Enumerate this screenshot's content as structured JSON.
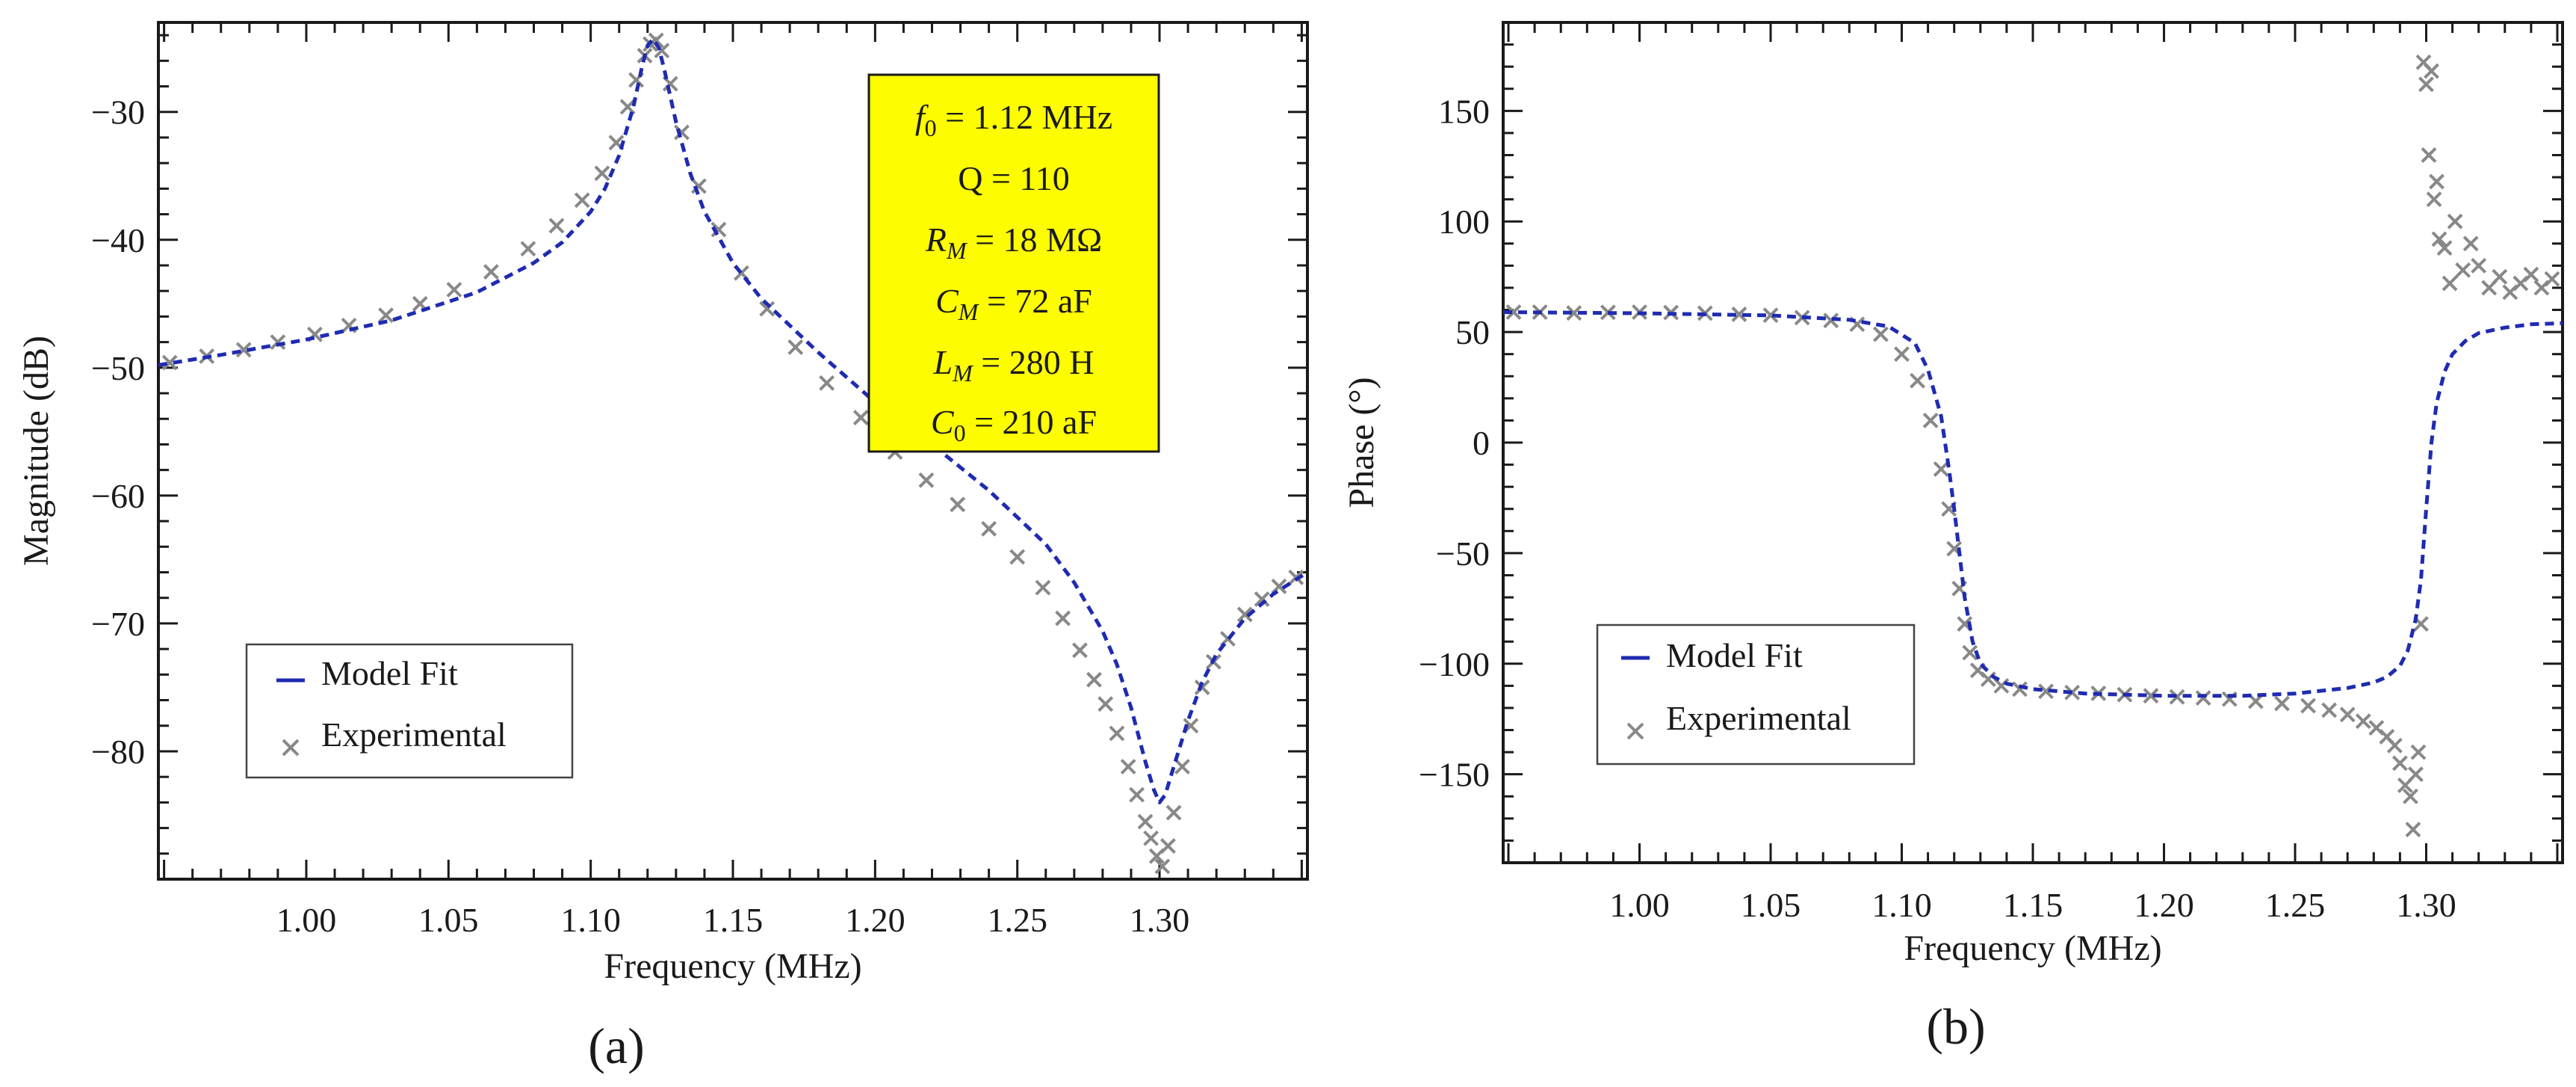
{
  "figure": {
    "panels": [
      "(a)",
      "(b)"
    ]
  },
  "chart_data": [
    {
      "type": "line",
      "panel_label": "(a)",
      "xlabel": "Frequency (MHz)",
      "ylabel": "Magnitude (dB)",
      "xlim": [
        0.948,
        1.352
      ],
      "ylim": [
        -90,
        -23
      ],
      "xticks": [
        "1.00",
        "1.05",
        "1.10",
        "1.15",
        "1.20",
        "1.25",
        "1.30"
      ],
      "xtick_values": [
        1.0,
        1.05,
        1.1,
        1.15,
        1.2,
        1.25,
        1.3
      ],
      "yticks": [
        "−30",
        "−40",
        "−50",
        "−60",
        "−70",
        "−80"
      ],
      "ytick_values": [
        -30,
        -40,
        -50,
        -60,
        -70,
        -80
      ],
      "legend": {
        "position": "lower-left",
        "entries": [
          "Model Fit",
          "Experimental"
        ]
      },
      "parameters": {
        "f0": {
          "symbol": "f",
          "sub": "0",
          "value": " = 1.12 MHz"
        },
        "q": {
          "text": "Q = 110"
        },
        "rm": {
          "symbol": "R",
          "sub": "M",
          "value": " = 18 MΩ"
        },
        "cm": {
          "symbol": "C",
          "sub": "M",
          "value": " = 72 aF"
        },
        "lm": {
          "symbol": "L",
          "sub": "M",
          "value": " = 280 H"
        },
        "c0": {
          "symbol": "C",
          "sub": "0",
          "value": " = 210 aF"
        }
      },
      "series": [
        {
          "name": "Model Fit",
          "style": "dashed-line",
          "color": "#1f2bb0",
          "x": [
            0.948,
            0.97,
            1.0,
            1.03,
            1.06,
            1.08,
            1.09,
            1.1,
            1.105,
            1.11,
            1.115,
            1.118,
            1.12,
            1.122,
            1.124,
            1.126,
            1.13,
            1.135,
            1.14,
            1.15,
            1.16,
            1.18,
            1.2,
            1.22,
            1.24,
            1.26,
            1.27,
            1.28,
            1.285,
            1.29,
            1.295,
            1.298,
            1.3,
            1.302,
            1.305,
            1.31,
            1.315,
            1.32,
            1.33,
            1.34,
            1.352
          ],
          "y": [
            -49.8,
            -49.0,
            -47.8,
            -46.3,
            -44.1,
            -41.8,
            -40.2,
            -37.8,
            -36.0,
            -33.4,
            -29.6,
            -26.5,
            -24.8,
            -24.3,
            -25.0,
            -26.8,
            -30.8,
            -34.8,
            -37.8,
            -41.8,
            -44.6,
            -48.8,
            -52.7,
            -56.0,
            -59.6,
            -63.8,
            -66.8,
            -70.6,
            -73.2,
            -76.6,
            -80.8,
            -83.0,
            -84.0,
            -83.4,
            -81.2,
            -77.6,
            -74.6,
            -72.4,
            -69.6,
            -67.7,
            -66.0
          ]
        },
        {
          "name": "Experimental",
          "style": "x-markers",
          "color": "#888888",
          "x": [
            0.952,
            0.965,
            0.978,
            0.99,
            1.003,
            1.015,
            1.028,
            1.04,
            1.052,
            1.065,
            1.078,
            1.088,
            1.097,
            1.104,
            1.109,
            1.113,
            1.116,
            1.119,
            1.121,
            1.123,
            1.125,
            1.128,
            1.132,
            1.138,
            1.145,
            1.153,
            1.162,
            1.172,
            1.183,
            1.195,
            1.207,
            1.218,
            1.229,
            1.24,
            1.25,
            1.259,
            1.266,
            1.272,
            1.277,
            1.281,
            1.285,
            1.289,
            1.292,
            1.295,
            1.297,
            1.299,
            1.301,
            1.303,
            1.305,
            1.308,
            1.311,
            1.315,
            1.319,
            1.324,
            1.33,
            1.336,
            1.342,
            1.348
          ],
          "y": [
            -49.6,
            -49.1,
            -48.6,
            -48.0,
            -47.4,
            -46.7,
            -45.9,
            -45.0,
            -43.9,
            -42.5,
            -40.7,
            -38.9,
            -36.9,
            -34.8,
            -32.4,
            -29.6,
            -27.5,
            -25.6,
            -24.7,
            -24.4,
            -25.2,
            -27.8,
            -31.6,
            -35.8,
            -39.2,
            -42.6,
            -45.4,
            -48.4,
            -51.2,
            -53.9,
            -56.6,
            -58.8,
            -60.7,
            -62.6,
            -64.8,
            -67.2,
            -69.6,
            -72.1,
            -74.4,
            -76.3,
            -78.6,
            -81.2,
            -83.4,
            -85.5,
            -86.8,
            -88.2,
            -89.0,
            -87.4,
            -84.8,
            -81.2,
            -78.0,
            -75.0,
            -73.0,
            -71.2,
            -69.3,
            -68.1,
            -67.1,
            -66.4
          ]
        }
      ]
    },
    {
      "type": "line",
      "panel_label": "(b)",
      "xlabel": "Frequency (MHz)",
      "ylabel": "Phase (°)",
      "xlim": [
        0.948,
        1.352
      ],
      "ylim": [
        -190,
        190
      ],
      "xticks": [
        "1.00",
        "1.05",
        "1.10",
        "1.15",
        "1.20",
        "1.25",
        "1.30"
      ],
      "xtick_values": [
        1.0,
        1.05,
        1.1,
        1.15,
        1.2,
        1.25,
        1.3
      ],
      "yticks": [
        "150",
        "100",
        "50",
        "0",
        "−50",
        "−100",
        "−150"
      ],
      "ytick_values": [
        150,
        100,
        50,
        0,
        -50,
        -100,
        -150
      ],
      "legend": {
        "position": "lower-left",
        "entries": [
          "Model Fit",
          "Experimental"
        ]
      },
      "series": [
        {
          "name": "Model Fit",
          "style": "dashed-line",
          "color": "#1f2bb0",
          "x": [
            0.948,
            1.0,
            1.05,
            1.08,
            1.095,
            1.105,
            1.11,
            1.115,
            1.118,
            1.12,
            1.122,
            1.124,
            1.127,
            1.13,
            1.135,
            1.14,
            1.15,
            1.17,
            1.2,
            1.23,
            1.25,
            1.27,
            1.28,
            1.285,
            1.29,
            1.293,
            1.296,
            1.298,
            1.3,
            1.302,
            1.304,
            1.307,
            1.31,
            1.315,
            1.32,
            1.33,
            1.34,
            1.352
          ],
          "y": [
            59.0,
            58.5,
            57.5,
            55.5,
            52.5,
            45.0,
            33.0,
            12.0,
            -12.0,
            -30.0,
            -50.0,
            -70.0,
            -90.0,
            -100.0,
            -106.0,
            -109.0,
            -111.5,
            -113.5,
            -114.5,
            -114.5,
            -113.5,
            -111.0,
            -108.5,
            -106.0,
            -101.0,
            -94.0,
            -80.0,
            -62.0,
            -30.0,
            0.0,
            18.0,
            32.0,
            40.0,
            46.0,
            49.5,
            52.0,
            53.5,
            54.0
          ]
        },
        {
          "name": "Experimental",
          "style": "x-markers",
          "color": "#888888",
          "x": [
            0.952,
            0.962,
            0.975,
            0.988,
            1.0,
            1.012,
            1.025,
            1.038,
            1.05,
            1.062,
            1.073,
            1.083,
            1.092,
            1.1,
            1.106,
            1.111,
            1.115,
            1.118,
            1.12,
            1.122,
            1.124,
            1.126,
            1.129,
            1.133,
            1.138,
            1.145,
            1.155,
            1.165,
            1.175,
            1.185,
            1.195,
            1.205,
            1.215,
            1.225,
            1.235,
            1.245,
            1.255,
            1.263,
            1.27,
            1.276,
            1.281,
            1.285,
            1.288,
            1.29,
            1.292,
            1.294,
            1.295,
            1.296,
            1.297,
            1.298,
            1.299,
            1.3,
            1.301,
            1.302,
            1.303,
            1.304,
            1.305,
            1.307,
            1.309,
            1.311,
            1.314,
            1.317,
            1.32,
            1.324,
            1.328,
            1.332,
            1.336,
            1.34,
            1.344,
            1.348
          ],
          "y": [
            59.0,
            59.0,
            58.6,
            58.9,
            59.0,
            58.8,
            58.5,
            58.0,
            57.6,
            56.5,
            55.2,
            53.5,
            49.0,
            40.0,
            28.0,
            10.0,
            -12.0,
            -30.0,
            -48.0,
            -66.0,
            -82.0,
            -95.0,
            -103.0,
            -107.0,
            -110.0,
            -111.5,
            -112.5,
            -113.0,
            -113.4,
            -114.0,
            -114.5,
            -115.0,
            -115.5,
            -116.0,
            -117.0,
            -118.0,
            -119.0,
            -121.0,
            -123.0,
            -126.0,
            -129.0,
            -133.0,
            -137.0,
            -145.0,
            -155.0,
            -160.0,
            -175.0,
            -150.0,
            -140.0,
            -82.0,
            172.0,
            162.0,
            130.0,
            168.0,
            110.0,
            118.0,
            92.0,
            88.0,
            72.0,
            100.0,
            78.0,
            90.0,
            80.0,
            70.0,
            75.0,
            68.0,
            72.0,
            76.0,
            70.0,
            74.0
          ]
        }
      ]
    }
  ]
}
